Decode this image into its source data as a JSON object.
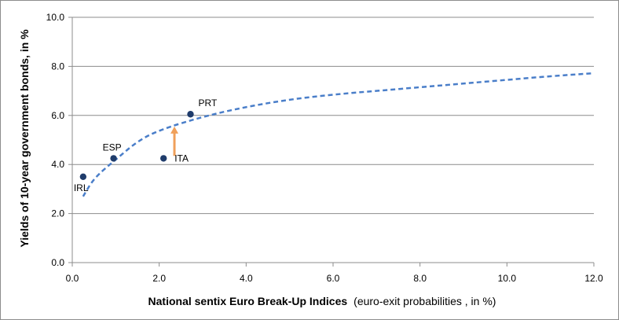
{
  "chart_data": {
    "type": "scatter",
    "xlabel": "National sentix Euro Break-Up Indices",
    "xlabel_suffix": "(euro-exit probabilities , in %)",
    "ylabel": "Yields of 10-year government bonds, in %",
    "xlim": [
      0,
      12
    ],
    "ylim": [
      0,
      10
    ],
    "x_ticks": [
      "0.0",
      "2.0",
      "4.0",
      "6.0",
      "8.0",
      "10.0",
      "12.0"
    ],
    "y_ticks": [
      "0.0",
      "2.0",
      "4.0",
      "6.0",
      "8.0",
      "10.0"
    ],
    "grid": "horizontal",
    "points": [
      {
        "label": "IRL",
        "x": 0.25,
        "y": 3.5
      },
      {
        "label": "ESP",
        "x": 0.95,
        "y": 4.25
      },
      {
        "label": "ITA",
        "x": 2.1,
        "y": 4.25
      },
      {
        "label": "PRT",
        "x": 2.72,
        "y": 6.05
      }
    ],
    "trendline": {
      "style": "dashed",
      "x": [
        0.25,
        0.5,
        1.0,
        1.5,
        2.0,
        3.0,
        4.0,
        5.0,
        6.0,
        7.0,
        8.0,
        9.0,
        10.0,
        11.0,
        12.0
      ],
      "y": [
        2.7,
        3.45,
        4.2,
        4.95,
        5.4,
        5.95,
        6.35,
        6.65,
        6.85,
        7.0,
        7.15,
        7.3,
        7.45,
        7.6,
        7.72
      ]
    },
    "arrow": {
      "x": 2.35,
      "y_from": 4.35,
      "y_to": 5.55,
      "color": "#f4a460"
    },
    "colors": {
      "points": "#1f3c6b",
      "trendline": "#4a7ec9",
      "grid": "#8c8c8c",
      "arrow": "#f0a05a"
    }
  }
}
